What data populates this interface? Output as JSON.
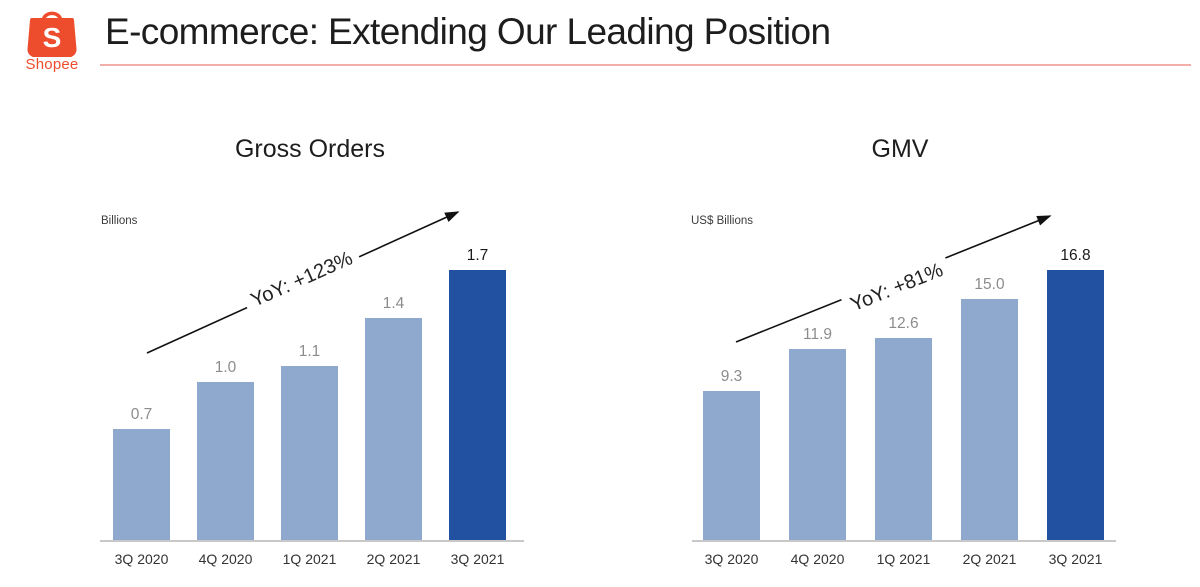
{
  "slide": {
    "title": "E-commerce: Extending Our Leading Position",
    "logo": {
      "brand": "Shopee",
      "letter": "S"
    }
  },
  "colors": {
    "brand_orange": "#EE4D2D",
    "title_text": "#1D1D1D",
    "title_underline": "#F2AEA8",
    "bar_light_blue": "#8FA8CE",
    "bar_dark_blue": "#2151A0",
    "value_label_gray": "#8C8C8C",
    "value_label_dark": "#1A1A1A",
    "axis_line": "#C8C8C8",
    "arrow": "#111111"
  },
  "chart_data": [
    {
      "type": "bar",
      "title": "Gross Orders",
      "unit_label": "Billions",
      "annotation": "YoY: +123%",
      "categories": [
        "3Q 2020",
        "4Q 2020",
        "1Q 2021",
        "2Q 2021",
        "3Q 2021"
      ],
      "values": [
        0.7,
        1.0,
        1.1,
        1.4,
        1.7
      ],
      "value_labels": [
        "0.7",
        "1.0",
        "1.1",
        "1.4",
        "1.7"
      ],
      "highlight_index": 4,
      "bar_color": "#8FA8CE",
      "bar_color_highlight": "#2151A0",
      "ylim": [
        0,
        1.8
      ],
      "gridlines": false,
      "legend": false
    },
    {
      "type": "bar",
      "title": "GMV",
      "unit_label": "US$ Billions",
      "annotation": "YoY: +81%",
      "categories": [
        "3Q 2020",
        "4Q 2020",
        "1Q 2021",
        "2Q 2021",
        "3Q 2021"
      ],
      "values": [
        9.3,
        11.9,
        12.6,
        15.0,
        16.8
      ],
      "value_labels": [
        "9.3",
        "11.9",
        "12.6",
        "15.0",
        "16.8"
      ],
      "highlight_index": 4,
      "bar_color": "#8FA8CE",
      "bar_color_highlight": "#2151A0",
      "ylim": [
        0,
        18
      ],
      "gridlines": false,
      "legend": false
    }
  ]
}
